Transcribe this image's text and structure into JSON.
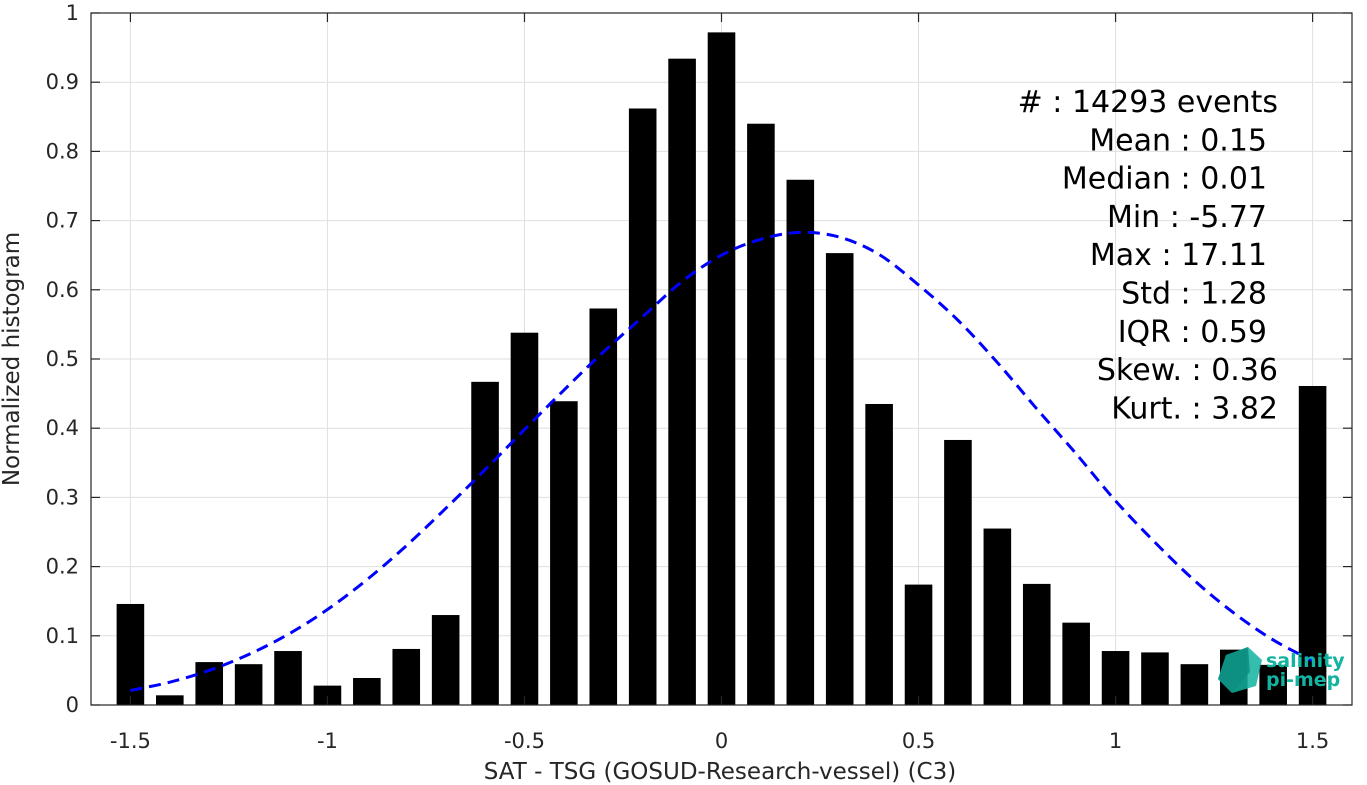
{
  "chart_data": {
    "type": "bar",
    "title": "",
    "xlabel": "SAT - TSG (GOSUD-Research-vessel) (C3)",
    "ylabel": "Normalized histogram",
    "xlim": [
      -1.6,
      1.6
    ],
    "ylim": [
      0,
      1
    ],
    "grid": true,
    "x_ticks": [
      -1.5,
      -1,
      -0.5,
      0,
      0.5,
      1,
      1.5
    ],
    "x_tick_labels": [
      "-1.5",
      "-1",
      "-0.5",
      "0",
      "0.5",
      "1",
      "1.5"
    ],
    "y_ticks": [
      0,
      0.1,
      0.2,
      0.3,
      0.4,
      0.5,
      0.6,
      0.7,
      0.8,
      0.9,
      1
    ],
    "y_tick_labels": [
      "0",
      "0.1",
      "0.2",
      "0.3",
      "0.4",
      "0.5",
      "0.6",
      "0.7",
      "0.8",
      "0.9",
      "1"
    ],
    "bar_width": 0.07,
    "x": [
      -1.5,
      -1.4,
      -1.3,
      -1.2,
      -1.1,
      -1.0,
      -0.9,
      -0.8,
      -0.7,
      -0.6,
      -0.5,
      -0.4,
      -0.3,
      -0.2,
      -0.1,
      0.0,
      0.1,
      0.2,
      0.3,
      0.4,
      0.5,
      0.6,
      0.7,
      0.8,
      0.9,
      1.0,
      1.1,
      1.2,
      1.3,
      1.4,
      1.5
    ],
    "values": [
      0.146,
      0.014,
      0.062,
      0.059,
      0.078,
      0.028,
      0.039,
      0.081,
      0.13,
      0.467,
      0.538,
      0.439,
      0.573,
      0.862,
      0.934,
      0.972,
      0.84,
      0.759,
      0.653,
      0.435,
      0.174,
      0.383,
      0.255,
      0.175,
      0.119,
      0.078,
      0.076,
      0.059,
      0.08,
      0.058,
      0.461
    ],
    "colors": {
      "bars": "#000000",
      "fit_curve": "#0000ff",
      "grid": "#dfdfdf",
      "axes": "#262626"
    },
    "fit_curve": {
      "style": "dashed",
      "x": [
        -1.5,
        -1.4,
        -1.3,
        -1.2,
        -1.1,
        -1.0,
        -0.9,
        -0.8,
        -0.7,
        -0.6,
        -0.5,
        -0.4,
        -0.3,
        -0.2,
        -0.1,
        0.0,
        0.1,
        0.2,
        0.3,
        0.4,
        0.5,
        0.6,
        0.7,
        0.8,
        0.9,
        1.0,
        1.1,
        1.2,
        1.3,
        1.4,
        1.5
      ],
      "y": [
        0.021,
        0.033,
        0.05,
        0.073,
        0.102,
        0.138,
        0.181,
        0.23,
        0.284,
        0.34,
        0.398,
        0.455,
        0.51,
        0.561,
        0.612,
        0.65,
        0.673,
        0.683,
        0.676,
        0.651,
        0.607,
        0.556,
        0.495,
        0.428,
        0.363,
        0.295,
        0.235,
        0.18,
        0.133,
        0.094,
        0.064
      ]
    },
    "stats": [
      {
        "text": "#  : 14293 events"
      },
      {
        "text": "Mean : 0.15"
      },
      {
        "text": "Median : 0.01"
      },
      {
        "text": "Min : -5.77"
      },
      {
        "text": "Max : 17.11"
      },
      {
        "text": "Std : 1.28"
      },
      {
        "text": "IQR : 0.59"
      },
      {
        "text": "Skew. : 0.36"
      },
      {
        "text": "Kurt. : 3.82"
      }
    ]
  },
  "logo": {
    "line1": "salinity",
    "line2": "pi-mep",
    "color": "#12b3a0"
  }
}
